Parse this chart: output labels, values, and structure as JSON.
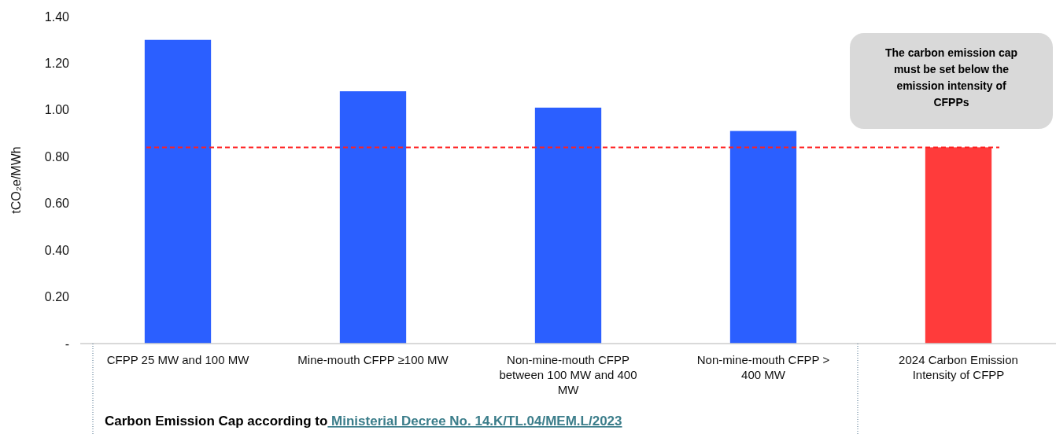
{
  "chart_data": {
    "type": "bar",
    "ylabel": "tCO₂e/MWh",
    "categories": [
      "CFPP 25 MW and 100 MW",
      "Mine-mouth CFPP ≥100 MW",
      "Non-mine-mouth CFPP between 100 MW and 400 MW",
      "Non-mine-mouth CFPP > 400 MW",
      "2024 Carbon Emission Intensity of CFPP"
    ],
    "values": [
      1.3,
      1.08,
      1.01,
      0.91,
      0.84
    ],
    "colors": [
      "#2b5fff",
      "#2b5fff",
      "#2b5fff",
      "#2b5fff",
      "#ff3b3b"
    ],
    "ylim": [
      0,
      1.4
    ],
    "yticks": [
      {
        "value": 0,
        "label": "-"
      },
      {
        "value": 0.2,
        "label": "0.20"
      },
      {
        "value": 0.4,
        "label": "0.40"
      },
      {
        "value": 0.6,
        "label": "0.60"
      },
      {
        "value": 0.8,
        "label": "0.80"
      },
      {
        "value": 1.0,
        "label": "1.00"
      },
      {
        "value": 1.2,
        "label": "1.20"
      },
      {
        "value": 1.4,
        "label": "1.40"
      }
    ],
    "ref_lines": [
      {
        "axis": "y",
        "value": 0.84,
        "color": "#ff2020",
        "line_style": "dashed"
      }
    ],
    "annotations": [
      "The carbon emission cap must be set below the emission intensity of CFPPs",
      "Carbon Emission Cap according to",
      "Ministerial Decree No. 14.K/TL.04/MEM.L/2023"
    ],
    "grid": false
  }
}
